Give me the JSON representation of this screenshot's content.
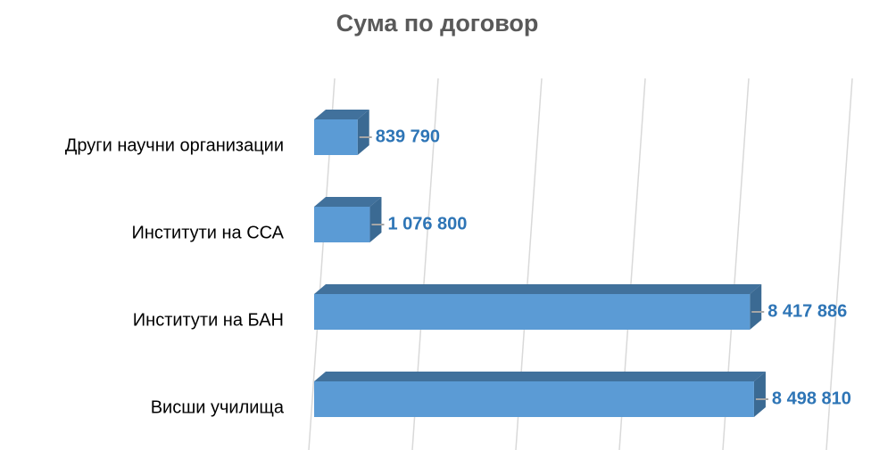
{
  "chart_data": {
    "type": "bar3d_horizontal",
    "title": "Сума по договор",
    "categories": [
      "Други научни организации",
      "Институти на ССА",
      "Институти на БАН",
      "Висши училища"
    ],
    "values": [
      839790,
      1076800,
      8417886,
      8498810
    ],
    "value_labels": [
      "839 790",
      "1 076 800",
      "8 417 886",
      "8 498 810"
    ],
    "color": "#5b9bd5",
    "xlim": [
      0,
      10000000
    ],
    "xticks": [
      0,
      2000000,
      4000000,
      6000000,
      8000000,
      10000000
    ],
    "grid": true
  }
}
